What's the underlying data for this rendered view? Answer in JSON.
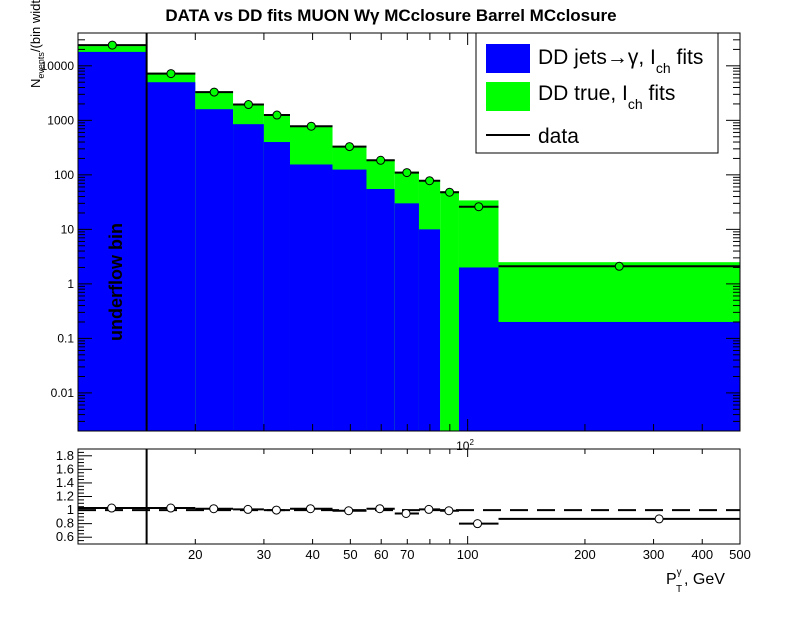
{
  "chart_data": [
    {
      "type": "bar",
      "title": "DATA vs DD fits MUON Wγ  MCclosure Barrel  MCclosure",
      "ylabel": "N_events/(bin width)",
      "ylabel_main": "N",
      "ylabel_sub": "events",
      "ylabel_rest": "/(bin width)",
      "x_scale": "log",
      "y_scale": "log",
      "xlim": [
        10,
        500
      ],
      "ylim": [
        0.002,
        40000
      ],
      "underflow_label": "underflow bin",
      "underflow_edge": 15,
      "x_tick_label": "10",
      "x_tick_sup": "2",
      "y_ticks": [
        {
          "v": 0.01,
          "label": "0.01"
        },
        {
          "v": 0.1,
          "label": "0.1"
        },
        {
          "v": 1,
          "label": "1"
        },
        {
          "v": 10,
          "label": "10"
        },
        {
          "v": 100,
          "label": "100"
        },
        {
          "v": 1000,
          "label": "1000"
        },
        {
          "v": 10000,
          "label": "10000"
        }
      ],
      "bins": [
        {
          "lo": 10,
          "hi": 15,
          "jets": 18000,
          "total": 23000,
          "data": 24000
        },
        {
          "lo": 15,
          "hi": 20,
          "jets": 5000,
          "total": 7500,
          "data": 7200
        },
        {
          "lo": 20,
          "hi": 25,
          "jets": 1600,
          "total": 3400,
          "data": 3300
        },
        {
          "lo": 25,
          "hi": 30,
          "jets": 850,
          "total": 2000,
          "data": 1950
        },
        {
          "lo": 30,
          "hi": 35,
          "jets": 400,
          "total": 1300,
          "data": 1250
        },
        {
          "lo": 35,
          "hi": 45,
          "jets": 155,
          "total": 800,
          "data": 780
        },
        {
          "lo": 45,
          "hi": 55,
          "jets": 125,
          "total": 340,
          "data": 330
        },
        {
          "lo": 55,
          "hi": 65,
          "jets": 55,
          "total": 190,
          "data": 185
        },
        {
          "lo": 65,
          "hi": 75,
          "jets": 30,
          "total": 115,
          "data": 110
        },
        {
          "lo": 75,
          "hi": 85,
          "jets": 10,
          "total": 80,
          "data": 78
        },
        {
          "lo": 85,
          "hi": 95,
          "jets": 0.001,
          "total": 50,
          "data": 48
        },
        {
          "lo": 95,
          "hi": 120,
          "jets": 2,
          "total": 34,
          "data": 26
        },
        {
          "lo": 120,
          "hi": 500,
          "jets": 0.2,
          "total": 2.5,
          "data": 2.1
        }
      ],
      "series": [
        {
          "name": "DD jets→γ, I_ch fits",
          "color": "#0000ff"
        },
        {
          "name": "DD true, I_ch fits",
          "color": "#00ff00"
        },
        {
          "name": "data",
          "color": "#000000"
        }
      ],
      "legend": {
        "placement": "top-right",
        "jets_label": "DD jets→γ, I",
        "jets_sub": "ch",
        "jets_tail": " fits",
        "true_label": "DD true, I",
        "true_sub": "ch",
        "true_tail": " fits",
        "data_label": "data"
      }
    },
    {
      "type": "scatter",
      "title": "",
      "x_scale": "log",
      "xlim": [
        10,
        500
      ],
      "ylim": [
        0.5,
        1.9
      ],
      "xlabel_main": "P",
      "xlabel_sup": "γ",
      "xlabel_sub": "T",
      "xlabel_rest": ", GeV",
      "reference_line": 1,
      "y_ticks": [
        {
          "v": 0.6,
          "label": "0.6"
        },
        {
          "v": 0.8,
          "label": "0.8"
        },
        {
          "v": 1.0,
          "label": "1"
        },
        {
          "v": 1.2,
          "label": "1.2"
        },
        {
          "v": 1.4,
          "label": "1.4"
        },
        {
          "v": 1.6,
          "label": "1.6"
        },
        {
          "v": 1.8,
          "label": "1.8"
        }
      ],
      "x_ticks": [
        {
          "v": 20,
          "label": "20"
        },
        {
          "v": 30,
          "label": "30"
        },
        {
          "v": 40,
          "label": "40"
        },
        {
          "v": 50,
          "label": "50"
        },
        {
          "v": 60,
          "label": "60"
        },
        {
          "v": 70,
          "label": "70"
        },
        {
          "v": 100,
          "label": "100"
        },
        {
          "v": 200,
          "label": "200"
        },
        {
          "v": 300,
          "label": "300"
        },
        {
          "v": 400,
          "label": "400"
        },
        {
          "v": 500,
          "label": "500"
        }
      ],
      "points": [
        {
          "lo": 10,
          "hi": 15,
          "x": 12.2,
          "y": 1.03,
          "err": 0.02
        },
        {
          "lo": 15,
          "hi": 20,
          "x": 17.3,
          "y": 1.03,
          "err": 0.02
        },
        {
          "lo": 20,
          "hi": 25,
          "x": 22.3,
          "y": 1.02,
          "err": 0.02
        },
        {
          "lo": 25,
          "hi": 30,
          "x": 27.3,
          "y": 1.01,
          "err": 0.02
        },
        {
          "lo": 30,
          "hi": 35,
          "x": 32.3,
          "y": 1.0,
          "err": 0.02
        },
        {
          "lo": 35,
          "hi": 45,
          "x": 39.5,
          "y": 1.02,
          "err": 0.02
        },
        {
          "lo": 45,
          "hi": 55,
          "x": 49.5,
          "y": 0.99,
          "err": 0.02
        },
        {
          "lo": 55,
          "hi": 65,
          "x": 59.5,
          "y": 1.02,
          "err": 0.03
        },
        {
          "lo": 65,
          "hi": 75,
          "x": 69.5,
          "y": 0.95,
          "err": 0.03
        },
        {
          "lo": 75,
          "hi": 85,
          "x": 79.5,
          "y": 1.01,
          "err": 0.04
        },
        {
          "lo": 85,
          "hi": 95,
          "x": 89.5,
          "y": 0.99,
          "err": 0.05
        },
        {
          "lo": 95,
          "hi": 120,
          "x": 106,
          "y": 0.8,
          "err": 0.04
        },
        {
          "lo": 120,
          "hi": 500,
          "x": 310,
          "y": 0.87,
          "err": 0.03
        }
      ]
    }
  ]
}
